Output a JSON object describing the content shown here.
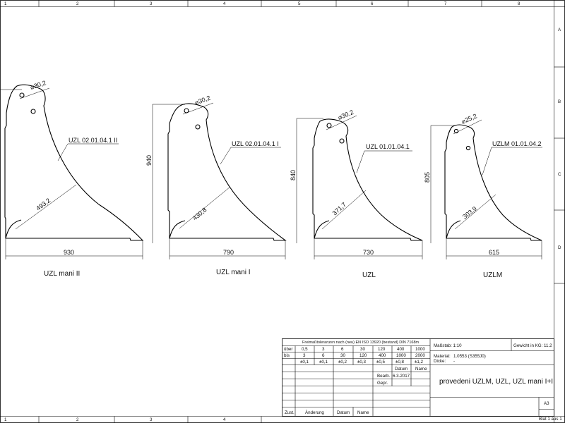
{
  "frame": {
    "cols": [
      "1",
      "2",
      "3",
      "4",
      "5",
      "6",
      "7",
      "8"
    ],
    "rows": [
      "A",
      "B",
      "C",
      "D"
    ]
  },
  "parts": [
    {
      "caption": "UZL mani II",
      "part_no": "UZL 02.01.04.1 II",
      "hole": "⌀30,2",
      "thickness": "493,2",
      "width": "930",
      "height": ""
    },
    {
      "caption": "UZL mani I",
      "part_no": "UZL 02.01.04.1 I",
      "hole": "⌀30,2",
      "thickness": "430,8",
      "width": "790",
      "height": "940"
    },
    {
      "caption": "UZL",
      "part_no": "UZL 01.01.04.1",
      "hole": "⌀30,2",
      "thickness": "371,7",
      "width": "730",
      "height": "840"
    },
    {
      "caption": "UZLM",
      "part_no": "UZLM 01.01.04.2",
      "hole": "⌀25,2",
      "thickness": "303,9",
      "width": "615",
      "height": "805"
    }
  ],
  "tolerance": {
    "title": "Freimaßtoleranzen nach (neu) EN ISO 13920 (bestand) DIN 7168m",
    "rows": [
      [
        "über",
        "0,5",
        "3",
        "6",
        "30",
        "120",
        "400",
        "1000"
      ],
      [
        "bis",
        "3",
        "6",
        "30",
        "120",
        "400",
        "1000",
        "2000"
      ],
      [
        "",
        "±0,1",
        "±0,1",
        "±0,2",
        "±0,3",
        "±0,5",
        "±0,8",
        "±1,2"
      ]
    ]
  },
  "revision": {
    "head_datum": "Datum",
    "head_name": "Name",
    "bearb_label": "Bearb.",
    "bearb_date": "6.3.2017",
    "gepr_label": "Gepr.",
    "footer": [
      "Zust.",
      "Änderung",
      "Datum",
      "Name"
    ]
  },
  "title_block": {
    "massstab": "Maßstab: 1:10",
    "gewicht": "Gewicht in KG:   11.2",
    "material_label": "Material:",
    "material": "1.0553 (S355J0)",
    "dicke_label": "Dicke:",
    "dicke": "-",
    "title": "provedeni UZLM, UZL, UZL mani I+II",
    "format": "A3",
    "sheet": "Blat 1 aus 1"
  }
}
